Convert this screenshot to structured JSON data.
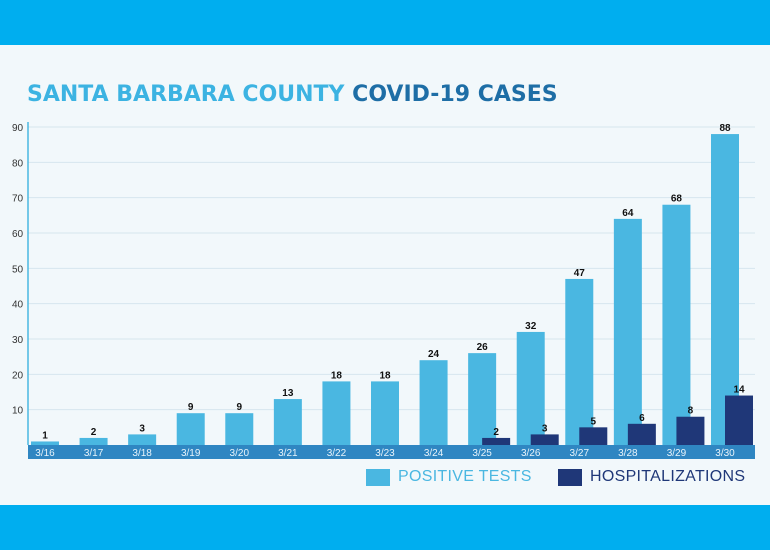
{
  "chart_data": {
    "type": "bar",
    "title": "SANTA BARBARA COUNTY COVID-19 CASES",
    "title_parts": [
      "SANTA BARBARA COUNTY",
      "COVID-19 CASES"
    ],
    "categories": [
      "3/16",
      "3/17",
      "3/18",
      "3/19",
      "3/20",
      "3/21",
      "3/22",
      "3/23",
      "3/24",
      "3/25",
      "3/26",
      "3/27",
      "3/28",
      "3/29",
      "3/30"
    ],
    "series": [
      {
        "name": "POSITIVE TESTS",
        "color": "#4ab7e1",
        "values": [
          1,
          2,
          3,
          9,
          9,
          13,
          18,
          18,
          24,
          26,
          32,
          47,
          64,
          68,
          88
        ]
      },
      {
        "name": "HOSPITALIZATIONS",
        "color": "#1f3778",
        "values": [
          null,
          null,
          null,
          null,
          null,
          null,
          null,
          null,
          null,
          2,
          3,
          5,
          6,
          8,
          14
        ]
      }
    ],
    "yticks": [
      10,
      20,
      30,
      40,
      50,
      60,
      70,
      80,
      90
    ],
    "ylim": [
      0,
      90
    ],
    "xlabel": "",
    "ylabel": "",
    "grid": true,
    "legend": "bottom-right",
    "colors": {
      "band": "#00aeef",
      "axis_band": "#2f86c2"
    }
  }
}
